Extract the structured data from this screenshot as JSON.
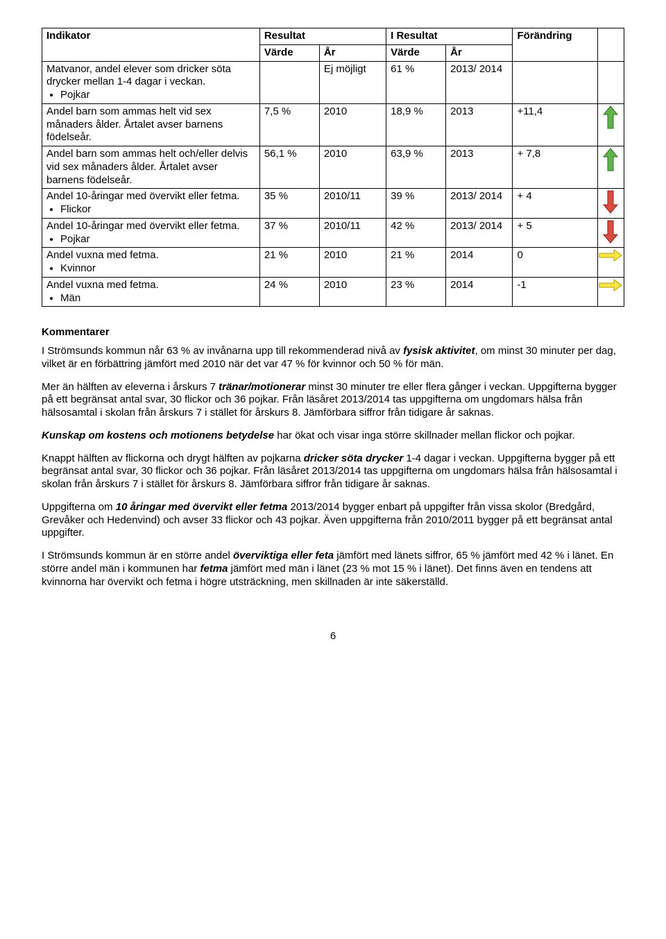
{
  "table": {
    "headers": {
      "indicator": "Indikator",
      "result": "Resultat",
      "iresult": "I Resultat",
      "change": "Förändring",
      "value": "Värde",
      "year": "År"
    },
    "rows": [
      {
        "indicator": "Matvanor, andel elever som dricker söta drycker mellan 1-4 dagar i veckan.",
        "bullets": [
          "Pojkar"
        ],
        "v1": "",
        "y1": "Ej möjligt",
        "v2": "61 %",
        "y2": "2013/ 2014",
        "change": "",
        "icon": ""
      },
      {
        "indicator": "Andel barn som ammas helt vid sex månaders ålder. Årtalet avser barnens födelseår.",
        "bullets": [],
        "v1": "7,5 %",
        "y1": "2010",
        "v2": "18,9 %",
        "y2": "2013",
        "change": "+11,4",
        "icon": "up-green"
      },
      {
        "indicator": "Andel barn som ammas helt och/eller delvis vid sex månaders ålder. Årtalet avser barnens födelseår.",
        "bullets": [],
        "v1": "56,1 %",
        "y1": "2010",
        "v2": "63,9 %",
        "y2": "2013",
        "change": "+ 7,8",
        "icon": "up-green"
      },
      {
        "indicator": "Andel 10-åringar med övervikt eller fetma.",
        "bullets": [
          "Flickor"
        ],
        "v1": "35 %",
        "y1": "2010/11",
        "v2": "39 %",
        "y2": "2013/ 2014",
        "change": "+ 4",
        "icon": "down-red"
      },
      {
        "indicator": "Andel 10-åringar med övervikt eller fetma.",
        "bullets": [
          "Pojkar"
        ],
        "v1": "37 %",
        "y1": "2010/11",
        "v2": "42 %",
        "y2": "2013/ 2014",
        "change": "+ 5",
        "icon": "down-red"
      },
      {
        "indicator": "Andel vuxna med fetma.",
        "bullets": [
          "Kvinnor"
        ],
        "v1": "21 %",
        "y1": "2010",
        "v2": "21 %",
        "y2": "2014",
        "change": "0",
        "icon": "flat-yellow"
      },
      {
        "indicator": "Andel vuxna med fetma.",
        "bullets": [
          "Män"
        ],
        "v1": "24 %",
        "y1": "2010",
        "v2": "23 %",
        "y2": "2014",
        "change": "-1",
        "icon": "flat-yellow"
      }
    ]
  },
  "icons": {
    "colors": {
      "up-green": {
        "fill": "#5fb54a",
        "stroke": "#2e6b21"
      },
      "down-red": {
        "fill": "#d94e3f",
        "stroke": "#8a2016"
      },
      "flat-yellow": {
        "fill": "#f7e64a",
        "stroke": "#b89d00"
      }
    }
  },
  "comments": {
    "heading": "Kommentarer",
    "paragraphs": [
      {
        "html": "I Strömsunds kommun når 63 % av invånarna upp till rekommenderad nivå av <b><i>fysisk aktivitet</i></b>, om minst 30 minuter per dag, vilket är en förbättring jämfört med 2010 när det var 47 % för kvinnor och 50 % för män."
      },
      {
        "html": "Mer än hälften av eleverna i årskurs 7 <b><i>tränar/motionerar</i></b> minst 30 minuter tre eller flera gånger i veckan. Uppgifterna bygger på ett begränsat antal svar, 30 flickor och 36 pojkar. Från läsåret 2013/2014 tas uppgifterna om ungdomars hälsa från hälsosamtal i skolan från årskurs 7 i stället för årskurs 8. Jämförbara siffror från tidigare år saknas."
      },
      {
        "html": "<b><i>Kunskap om kostens och motionens betydelse</i></b> har ökat och visar inga större skillnader mellan flickor och pojkar."
      },
      {
        "html": "Knappt hälften av flickorna och drygt hälften av pojkarna <b><i>dricker söta drycker</i></b> 1-4 dagar i veckan. Uppgifterna bygger på ett begränsat antal svar, 30 flickor och 36 pojkar. Från läsåret 2013/2014 tas uppgifterna om ungdomars hälsa från hälsosamtal i skolan från årskurs 7 i stället för årskurs 8. Jämförbara siffror från tidigare år saknas."
      },
      {
        "html": "Uppgifterna om <b><i>10 åringar med övervikt eller fetma</i></b> 2013/2014 bygger enbart på uppgifter från vissa skolor (Bredgård, Grevåker och Hedenvind) och avser 33 flickor och 43 pojkar. Även uppgifterna från 2010/2011 bygger på ett begränsat antal uppgifter."
      },
      {
        "html": "I Strömsunds kommun är en större andel <b><i>överviktiga eller feta</i></b> jämfört med länets siffror, 65 % jämfört med 42 % i länet. En större andel män i kommunen har <b><i>fetma</i></b> jämfört med män i länet (23 % mot 15 % i länet). Det finns även en tendens att kvinnorna har övervikt och fetma i högre utsträckning, men skillnaden är inte säkerställd."
      }
    ]
  },
  "page_number": "6"
}
